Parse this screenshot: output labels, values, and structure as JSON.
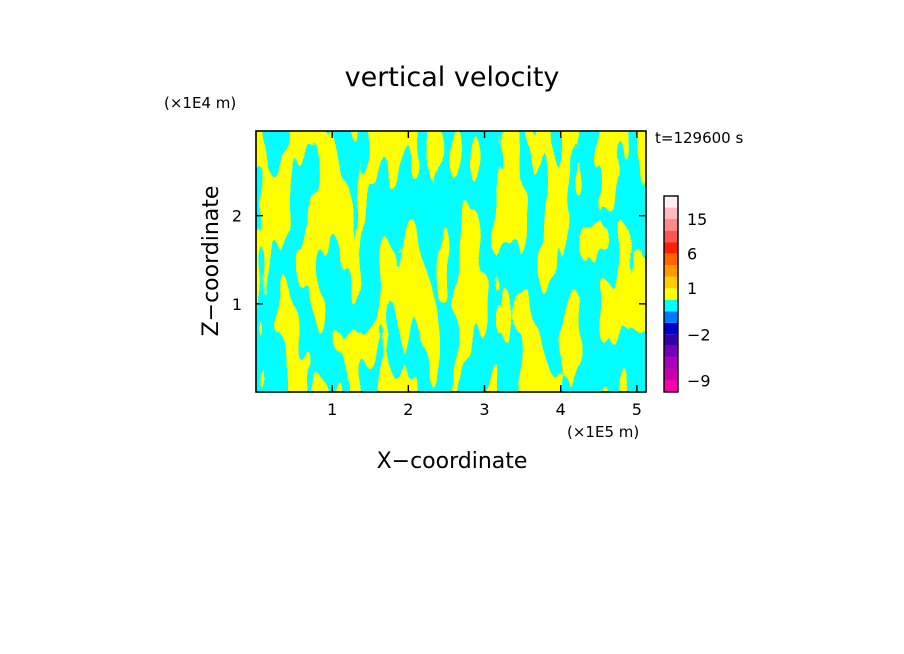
{
  "chart_data": {
    "type": "heatmap",
    "title": "vertical velocity",
    "xlabel": "X−coordinate",
    "ylabel": "Z−coordinate",
    "x_unit": "(×1E5 m)",
    "y_unit": "(×1E4 m)",
    "time_label": "t=129600 s",
    "xlim": [
      0,
      5.12
    ],
    "ylim": [
      0,
      2.96
    ],
    "x_ticks": [
      {
        "value": 1,
        "label": "1"
      },
      {
        "value": 2,
        "label": "2"
      },
      {
        "value": 3,
        "label": "3"
      },
      {
        "value": 4,
        "label": "4"
      },
      {
        "value": 5,
        "label": "5"
      }
    ],
    "y_ticks": [
      {
        "value": 1,
        "label": "1"
      },
      {
        "value": 2,
        "label": "2"
      }
    ],
    "field_colors": {
      "positive": "#ffff00",
      "negative": "#00ffff"
    },
    "colorbar": {
      "levels": [
        -12,
        -9,
        -6,
        -4,
        -3,
        -2,
        -1,
        0,
        0.5,
        1,
        2,
        4,
        6,
        9,
        12,
        15,
        20,
        25
      ],
      "colors": [
        "#ff00aa",
        "#cc00aa",
        "#aa00bb",
        "#7700bb",
        "#3300aa",
        "#0000cc",
        "#0077ff",
        "#00ffff",
        "#ffff00",
        "#ffcc00",
        "#ff9900",
        "#ff6600",
        "#ff2200",
        "#ff5555",
        "#ff8888",
        "#ffbbbb",
        "#ffeeee"
      ],
      "labels": [
        {
          "value": -9,
          "label": "−9"
        },
        {
          "value": -2,
          "label": "−2"
        },
        {
          "value": 1,
          "label": "1"
        },
        {
          "value": 6,
          "label": "6"
        },
        {
          "value": 15,
          "label": "15"
        }
      ]
    }
  }
}
